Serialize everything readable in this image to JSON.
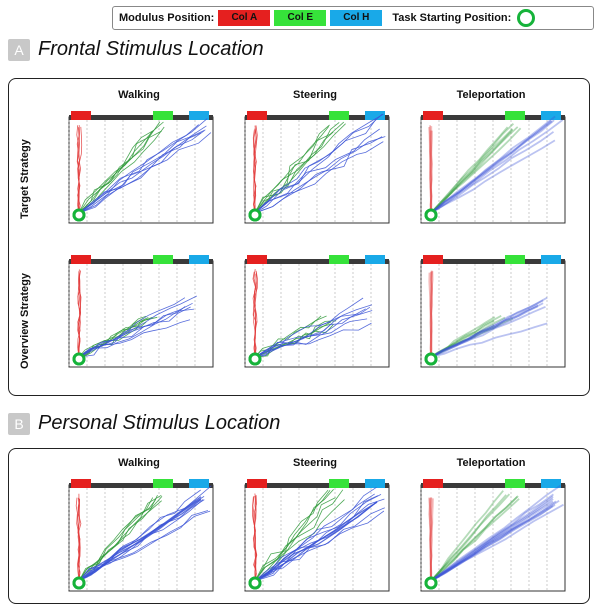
{
  "legend": {
    "modulus_label": "Modulus Position:",
    "col_a": "Col A",
    "col_e": "Col E",
    "col_h": "Col H",
    "start_label": "Task Starting Position:"
  },
  "colors": {
    "col_a": "#e5201f",
    "col_e": "#36e23a",
    "col_h": "#19a9e8",
    "start": "#16b33a",
    "path_a": "#e23b3b",
    "path_e": "#2f9a3a",
    "path_h": "#3b53d6"
  },
  "section_a": {
    "letter": "A",
    "title": "Frontal Stimulus Location",
    "columns": [
      "Walking",
      "Steering",
      "Teleportation"
    ],
    "rows": [
      "Target Strategy",
      "Overview Strategy"
    ]
  },
  "section_b": {
    "letter": "B",
    "title": "Personal Stimulus Location",
    "columns": [
      "Walking",
      "Steering",
      "Teleportation"
    ]
  }
}
